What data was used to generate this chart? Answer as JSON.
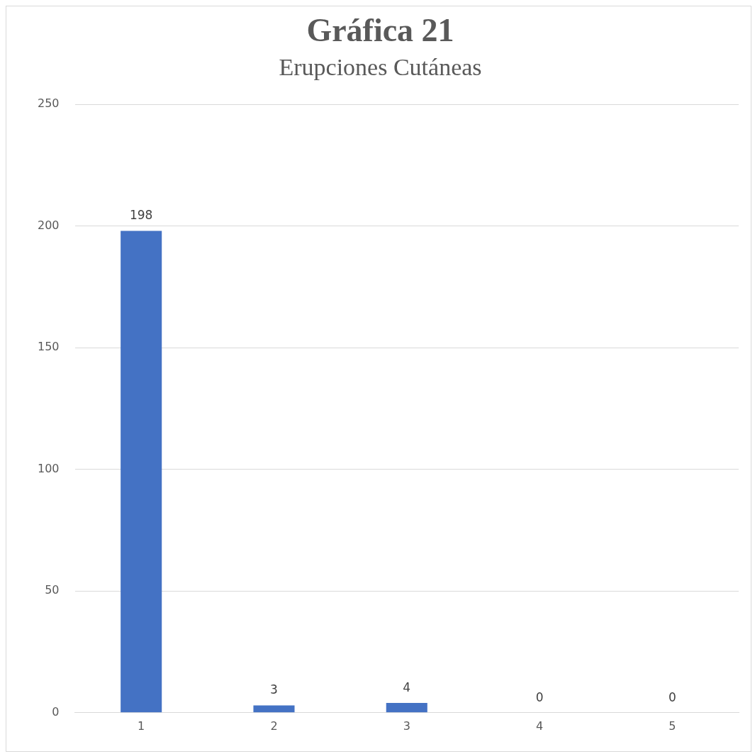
{
  "chart_data": {
    "type": "bar",
    "title": "Gráfica 21",
    "subtitle": "Erupciones Cutáneas",
    "categories": [
      "1",
      "2",
      "3",
      "4",
      "5"
    ],
    "values": [
      198,
      3,
      4,
      0,
      0
    ],
    "color": "#4472c4",
    "ylim": [
      0,
      250
    ],
    "yticks": [
      0,
      50,
      100,
      150,
      200,
      250
    ],
    "grid": "y",
    "data_labels": true
  }
}
